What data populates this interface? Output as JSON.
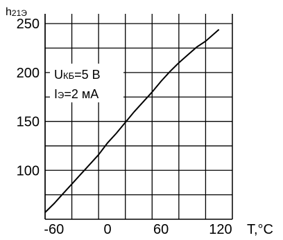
{
  "chart_data": {
    "type": "line",
    "ylabel": {
      "main": "h",
      "sub": "21Э"
    },
    "xlabel": "T,°C",
    "ylim": [
      50,
      260
    ],
    "xlim": [
      -70,
      140
    ],
    "x_ticks": [
      "-60",
      "0",
      "60",
      "120"
    ],
    "y_ticks": [
      "100",
      "150",
      "200",
      "250"
    ],
    "x_tick_values": [
      -60,
      0,
      60,
      120
    ],
    "y_tick_values": [
      100,
      150,
      200,
      250
    ],
    "grid": true,
    "annotations": [
      {
        "main": "U",
        "sub": "КБ",
        "rest": "=5 В"
      },
      {
        "main": "I",
        "sub": "Э",
        "rest": "=2 мА"
      }
    ],
    "series": [
      {
        "x": [
          -70,
          -60,
          -50,
          -40,
          -30,
          -20,
          -10,
          0,
          10,
          20,
          30,
          40,
          50,
          60,
          70,
          80,
          90,
          100,
          110,
          120,
          125
        ],
        "values": [
          57,
          66,
          76,
          86,
          96,
          106,
          116,
          128,
          138,
          149,
          160,
          170,
          180,
          191,
          201,
          210,
          218,
          226,
          232,
          240,
          244
        ]
      }
    ]
  }
}
